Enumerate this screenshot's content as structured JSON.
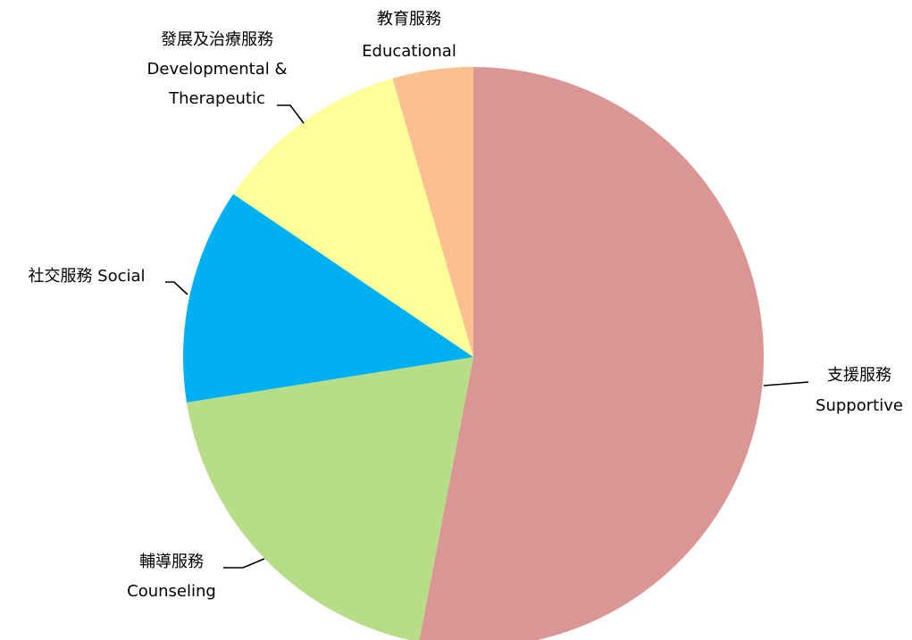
{
  "chart_data": {
    "type": "pie",
    "categories": [
      [
        "支援服務",
        "Supportive"
      ],
      [
        "輔導服務",
        "Counseling"
      ],
      [
        "社交服務 Social"
      ],
      [
        "發展及治療服務",
        "Developmental &",
        "Therapeutic"
      ],
      [
        "教育服務",
        "Educational"
      ]
    ],
    "values": [
      53,
      19.5,
      12,
      11,
      4.5
    ],
    "colors": [
      "#d99694",
      "#b7dd88",
      "#00b0f0",
      "#ffff99",
      "#fac090"
    ]
  }
}
